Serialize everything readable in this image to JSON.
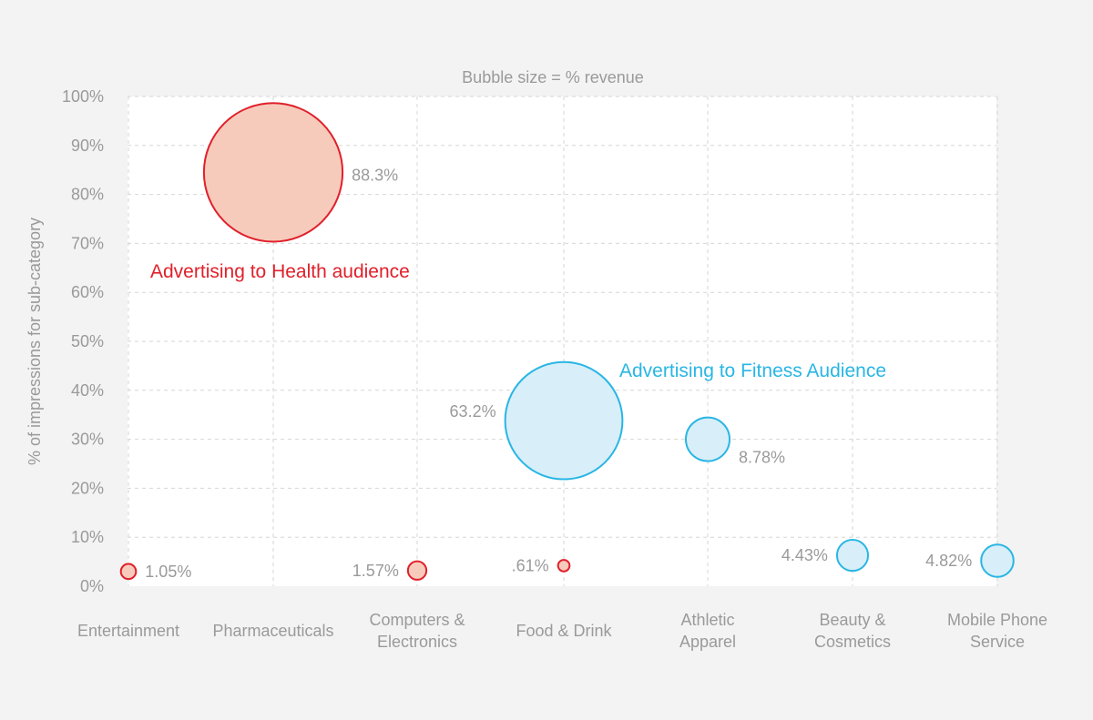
{
  "chart_data": {
    "type": "scatter",
    "subtitle": "Bubble size = % revenue",
    "ylabel": "% of impressions for sub-category",
    "xlabel": "",
    "ylim": [
      0,
      100
    ],
    "yticks": [
      "0%",
      "10%",
      "20%",
      "30%",
      "40%",
      "50%",
      "60%",
      "70%",
      "80%",
      "90%",
      "100%"
    ],
    "grid": true,
    "categories": [
      [
        "Entertainment"
      ],
      [
        "Pharmaceuticals"
      ],
      [
        "Computers &",
        "Electronics"
      ],
      [
        "Food & Drink"
      ],
      [
        "Athletic",
        "Apparel"
      ],
      [
        "Beauty &",
        "Cosmetics"
      ],
      [
        "Mobile Phone",
        "Service"
      ]
    ],
    "series": [
      {
        "name": "Advertising to Health audience",
        "color": "#e0202b",
        "fill": "#f7cbbb",
        "points": [
          {
            "category": 0,
            "y": 3,
            "size": 1.05,
            "label": "1.05%",
            "label_side": "right"
          },
          {
            "category": 1,
            "y": 84.5,
            "size": 88.3,
            "label": "88.3%",
            "label_side": "right"
          },
          {
            "category": 2,
            "y": 3.2,
            "size": 1.57,
            "label": "1.57%",
            "label_side": "left"
          },
          {
            "category": 3,
            "y": 4.2,
            "size": 0.61,
            "label": ".61%",
            "label_side": "left"
          }
        ]
      },
      {
        "name": "Advertising to Fitness Audience",
        "color": "#29b6e4",
        "fill": "#d8eef9",
        "points": [
          {
            "category": 3,
            "y": 33.8,
            "size": 63.2,
            "label": "63.2%",
            "label_side": "left"
          },
          {
            "category": 4,
            "y": 30,
            "size": 8.78,
            "label": "8.78%",
            "label_side": "right"
          },
          {
            "category": 5,
            "y": 6.3,
            "size": 4.43,
            "label": "4.43%",
            "label_side": "left"
          },
          {
            "category": 6,
            "y": 5.2,
            "size": 4.82,
            "label": "4.82%",
            "label_side": "left"
          }
        ]
      }
    ]
  }
}
